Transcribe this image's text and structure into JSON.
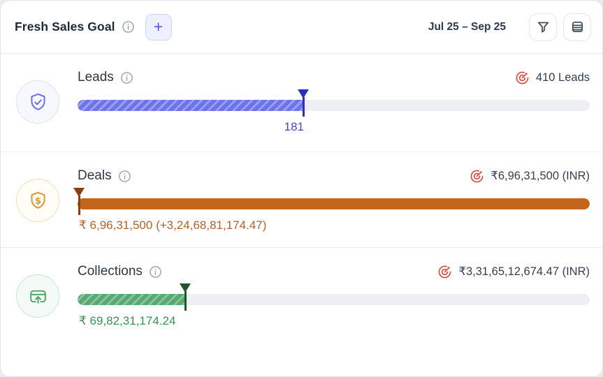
{
  "header": {
    "title": "Fresh Sales Goal",
    "add_button": "+",
    "date_range": "Jul 25 – Sep 25"
  },
  "colors": {
    "target_icon": "#dc4a3d",
    "track": "#edeff4",
    "card_bg": "#ffffff",
    "divider": "#edeff3"
  },
  "goals": [
    {
      "label": "Leads",
      "target_text": "410 Leads",
      "target_value": 410,
      "current_value": 181,
      "value_text": "181",
      "fill_percent": 44.2,
      "marker_percent": 44.2,
      "bar_style": "striped",
      "value_align": "marker",
      "icon": "shield-check-icon",
      "colors": {
        "bar": "#6d74e8",
        "stripe": "#9aa0ef",
        "marker": "#2e2eb8",
        "value": "#4347cb",
        "icon": "#6d74e8",
        "icon_bg": "#f6f8fe",
        "icon_border": "#dce1fa"
      }
    },
    {
      "label": "Deals",
      "target_text": "₹6,96,31,500 (INR)",
      "value_text": "₹ 6,96,31,500 (+3,24,68,81,174.47)",
      "fill_percent": 100,
      "marker_percent": 0.3,
      "bar_style": "solid",
      "value_align": "start",
      "icon": "shield-dollar-icon",
      "colors": {
        "bar": "#c2661c",
        "stripe": "#c2661c",
        "marker": "#8e3e0b",
        "value": "#b45f28",
        "icon": "#dd9a33",
        "icon_bg": "#fffdf7",
        "icon_border": "#f2deb4"
      }
    },
    {
      "label": "Collections",
      "target_text": "₹3,31,65,12,674.47 (INR)",
      "value_text": "₹ 69,82,31,174.24",
      "fill_percent": 21.1,
      "marker_percent": 21.1,
      "bar_style": "striped",
      "value_align": "start",
      "icon": "card-arrow-up-icon",
      "colors": {
        "bar": "#58a872",
        "stripe": "#87c29c",
        "marker": "#20552c",
        "value": "#3a9156",
        "icon": "#58a872",
        "icon_bg": "#f4fbf6",
        "icon_border": "#c4e7cf"
      }
    }
  ]
}
